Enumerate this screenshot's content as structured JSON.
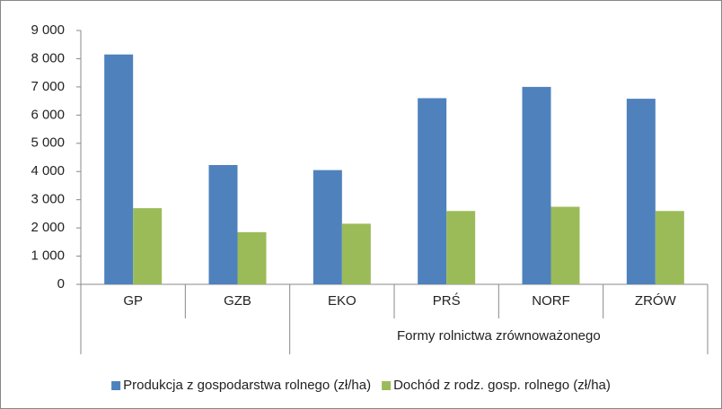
{
  "chart_data": {
    "type": "bar",
    "category_groups": [
      {
        "label": null,
        "categories": [
          "GP",
          "GZB"
        ]
      },
      {
        "label": "Formy rolnictwa zrównoważonego",
        "categories": [
          "EKO",
          "PRŚ",
          "NORF",
          "ZRÓW"
        ]
      }
    ],
    "series": [
      {
        "name": "Produkcja z gospodarstwa rolnego (zł/ha)",
        "color": "#4f81bd",
        "values": [
          8150,
          4230,
          4050,
          6600,
          7000,
          6580
        ]
      },
      {
        "name": "Dochód z rodz. gosp. rolnego (zł/ha)",
        "color": "#9bbb59",
        "values": [
          2700,
          1850,
          2150,
          2600,
          2750,
          2600
        ]
      }
    ],
    "ylim": [
      0,
      9000
    ],
    "yticks": [
      0,
      {
        "value": 1000,
        "label": "1 000"
      },
      {
        "value": 2000,
        "label": "2 000"
      },
      {
        "value": 3000,
        "label": "3 000"
      },
      {
        "value": 4000,
        "label": "4 000"
      },
      {
        "value": 5000,
        "label": "5 000"
      },
      {
        "value": 6000,
        "label": "6 000"
      },
      {
        "value": 7000,
        "label": "7 000"
      },
      {
        "value": 8000,
        "label": "8 000"
      },
      {
        "value": 9000,
        "label": "9 000"
      }
    ],
    "grid": false,
    "legend": "bottom"
  }
}
